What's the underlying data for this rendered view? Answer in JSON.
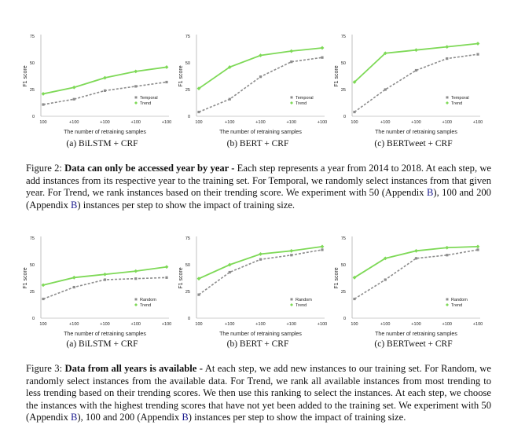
{
  "chart_data": [
    {
      "type": "line",
      "ylabel": "F1 score",
      "xlabel": "The number of retraining samples",
      "categories": [
        "100",
        "+100",
        "+100",
        "+100",
        "+100"
      ],
      "yticks": [
        "0",
        "25",
        "50",
        "75"
      ],
      "ylim": [
        0,
        75
      ],
      "series": [
        {
          "name": "Temporal",
          "values": [
            11,
            16,
            24,
            28,
            32
          ],
          "style": "dashed",
          "color": "#8c8c8c"
        },
        {
          "name": "Trend",
          "values": [
            21,
            27,
            36,
            42,
            46
          ],
          "style": "solid",
          "color": "#7ed957"
        }
      ],
      "legend": "bottom-right"
    },
    {
      "type": "line",
      "ylabel": "F1 score",
      "xlabel": "The number of retraining samples",
      "categories": [
        "100",
        "+100",
        "+100",
        "+100",
        "+100"
      ],
      "yticks": [
        "0",
        "25",
        "50",
        "75"
      ],
      "ylim": [
        0,
        75
      ],
      "series": [
        {
          "name": "Temporal",
          "values": [
            4,
            16,
            37,
            51,
            55
          ],
          "style": "dashed",
          "color": "#8c8c8c"
        },
        {
          "name": "Trend",
          "values": [
            26,
            46,
            57,
            61,
            64
          ],
          "style": "solid",
          "color": "#7ed957"
        }
      ],
      "legend": "bottom-right"
    },
    {
      "type": "line",
      "ylabel": "F1 score",
      "xlabel": "The number of retraining samples",
      "categories": [
        "100",
        "+100",
        "+100",
        "+100",
        "+100"
      ],
      "yticks": [
        "0",
        "25",
        "50",
        "75"
      ],
      "ylim": [
        0,
        75
      ],
      "series": [
        {
          "name": "Temporal",
          "values": [
            4,
            25,
            43,
            54,
            58
          ],
          "style": "dashed",
          "color": "#8c8c8c"
        },
        {
          "name": "Trend",
          "values": [
            32,
            59,
            62,
            65,
            68
          ],
          "style": "solid",
          "color": "#7ed957"
        }
      ],
      "legend": "bottom-right"
    },
    {
      "type": "line",
      "ylabel": "F1 score",
      "xlabel": "The number of retraining samples",
      "categories": [
        "100",
        "+100",
        "+100",
        "+100",
        "+100"
      ],
      "yticks": [
        "0",
        "25",
        "50",
        "75"
      ],
      "ylim": [
        0,
        75
      ],
      "series": [
        {
          "name": "Random",
          "values": [
            18,
            29,
            36,
            37,
            38
          ],
          "style": "dashed",
          "color": "#8c8c8c"
        },
        {
          "name": "Trend",
          "values": [
            31,
            38,
            41,
            44,
            48
          ],
          "style": "solid",
          "color": "#7ed957"
        }
      ],
      "legend": "bottom-right"
    },
    {
      "type": "line",
      "ylabel": "F1 score",
      "xlabel": "The number of retraining samples",
      "categories": [
        "100",
        "+100",
        "+100",
        "+100",
        "+100"
      ],
      "yticks": [
        "0",
        "25",
        "50",
        "75"
      ],
      "ylim": [
        0,
        75
      ],
      "series": [
        {
          "name": "Random",
          "values": [
            22,
            43,
            55,
            59,
            64
          ],
          "style": "dashed",
          "color": "#8c8c8c"
        },
        {
          "name": "Trend",
          "values": [
            37,
            50,
            60,
            63,
            67
          ],
          "style": "solid",
          "color": "#7ed957"
        }
      ],
      "legend": "bottom-right"
    },
    {
      "type": "line",
      "ylabel": "F1 score",
      "xlabel": "The number of retraining samples",
      "categories": [
        "100",
        "+100",
        "+100",
        "+100",
        "+100"
      ],
      "yticks": [
        "0",
        "25",
        "50",
        "75"
      ],
      "ylim": [
        0,
        75
      ],
      "series": [
        {
          "name": "Random",
          "values": [
            18,
            36,
            56,
            59,
            64
          ],
          "style": "dashed",
          "color": "#8c8c8c"
        },
        {
          "name": "Trend",
          "values": [
            38,
            56,
            63,
            66,
            67
          ],
          "style": "solid",
          "color": "#7ed957"
        }
      ],
      "legend": "bottom-right"
    }
  ],
  "subcaptions": {
    "fig2": [
      "(a) BiLSTM + CRF",
      "(b) BERT + CRF",
      "(c) BERTweet + CRF"
    ],
    "fig3": [
      "(a) BiLSTM + CRF",
      "(b) BERT + CRF",
      "(c) BERTweet + CRF"
    ]
  },
  "fig2": {
    "label": "Figure 2:",
    "bold": "Data can only be accessed year by year -",
    "text1": "Each step represents a year from 2014 to 2018. At each step, we add instances from its respective year to the training set. For Temporal, we randomly select instances from that given year. For Trend, we rank instances based on their trending score. We experiment with 50 (Appendix ",
    "ref1": "B",
    "text2": "), 100 and 200 (Appendix ",
    "ref2": "B",
    "text3": ") instances per step to show the impact of training size."
  },
  "fig3": {
    "label": "Figure 3:",
    "bold": "Data from all years is available -",
    "text1": "At each step, we add new instances to our training set. For Random, we randomly select instances from the available data. For Trend, we rank all available instances from most trending to less trending based on their trending scores. We then use this ranking to select the instances. At each step, we choose the instances with the highest trending scores that have not yet been added to the training set. We experiment with 50 (Appendix ",
    "ref1": "B",
    "text2": "), 100 and 200 (Appendix ",
    "ref2": "B",
    "text3": ") instances per step to show the impact of training size."
  }
}
